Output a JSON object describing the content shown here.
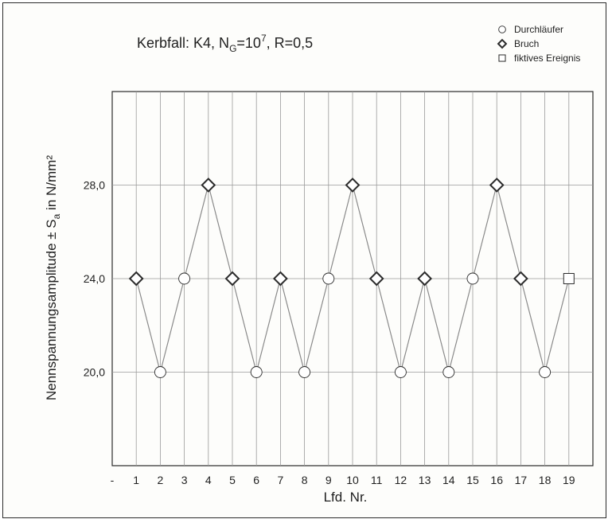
{
  "chart_data": {
    "type": "scatter",
    "title_parts": {
      "prefix": "Kerbfall: K4, N",
      "sub": "G",
      "eq": "=10",
      "sup": "7",
      "suffix": ", R=0,5"
    },
    "xlabel": "Lfd. Nr.",
    "ylabel_parts": {
      "main": "Nennspannungsamplitude ± S",
      "sub": "a",
      "unit": " in N/mm²"
    },
    "x_tick_labels": [
      "-",
      "1",
      "2",
      "3",
      "4",
      "5",
      "6",
      "7",
      "8",
      "9",
      "10",
      "11",
      "12",
      "13",
      "14",
      "15",
      "16",
      "17",
      "18",
      "19"
    ],
    "y_tick_values": [
      20,
      24,
      28
    ],
    "y_tick_labels": [
      "20,0",
      "24,0",
      "28,0"
    ],
    "xlim": [
      0,
      20
    ],
    "ylim": [
      16,
      32
    ],
    "grid": true,
    "legend_position": "top-right",
    "legend": [
      {
        "marker": "circle",
        "label": "Durchläufer"
      },
      {
        "marker": "diamond",
        "label": "Bruch"
      },
      {
        "marker": "square",
        "label": "fiktives Ereignis"
      }
    ],
    "points": [
      {
        "x": 1,
        "y": 24,
        "type": "diamond"
      },
      {
        "x": 2,
        "y": 20,
        "type": "circle"
      },
      {
        "x": 3,
        "y": 24,
        "type": "circle"
      },
      {
        "x": 4,
        "y": 28,
        "type": "diamond"
      },
      {
        "x": 5,
        "y": 24,
        "type": "diamond"
      },
      {
        "x": 6,
        "y": 20,
        "type": "circle"
      },
      {
        "x": 7,
        "y": 24,
        "type": "diamond"
      },
      {
        "x": 8,
        "y": 20,
        "type": "circle"
      },
      {
        "x": 9,
        "y": 24,
        "type": "circle"
      },
      {
        "x": 10,
        "y": 28,
        "type": "diamond"
      },
      {
        "x": 11,
        "y": 24,
        "type": "diamond"
      },
      {
        "x": 12,
        "y": 20,
        "type": "circle"
      },
      {
        "x": 13,
        "y": 24,
        "type": "diamond"
      },
      {
        "x": 14,
        "y": 20,
        "type": "circle"
      },
      {
        "x": 15,
        "y": 24,
        "type": "circle"
      },
      {
        "x": 16,
        "y": 28,
        "type": "diamond"
      },
      {
        "x": 17,
        "y": 24,
        "type": "diamond"
      },
      {
        "x": 18,
        "y": 20,
        "type": "circle"
      },
      {
        "x": 19,
        "y": 24,
        "type": "square"
      }
    ],
    "colors": {
      "line": "#8a8a8a",
      "grid": "#9a9a9a",
      "marker_stroke": "#2b2b2b",
      "marker_fill": "#ffffff"
    }
  }
}
